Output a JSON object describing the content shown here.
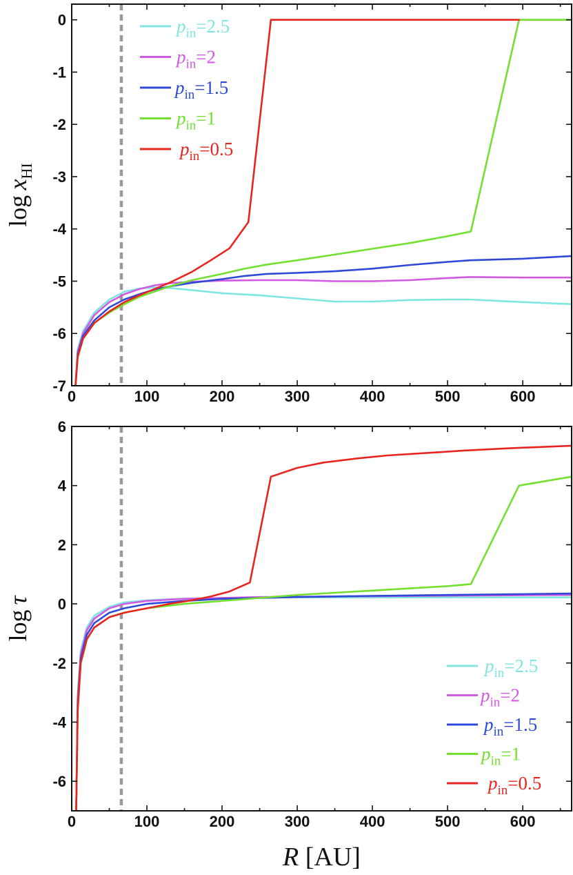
{
  "chart_data": [
    {
      "type": "line",
      "id": "top",
      "xlabel": "",
      "ylabel_main": "log",
      "ylabel_var": "x",
      "ylabel_sub": "HI",
      "xlim": [
        0,
        665
      ],
      "ylim": [
        -7,
        0.3
      ],
      "xticks": [
        0,
        100,
        200,
        300,
        400,
        500,
        600
      ],
      "xtick_labels": [
        "0",
        "100",
        "200",
        "300",
        "400",
        "500",
        "600"
      ],
      "yticks": [
        0,
        -1,
        -2,
        -3,
        -4,
        -5,
        -6,
        -7
      ],
      "ytick_labels": [
        "0",
        "-1",
        "-2",
        "-3",
        "-4",
        "-5",
        "-6",
        "-7"
      ],
      "vline_x": 66,
      "legend_position": "top-left",
      "series": [
        {
          "name": "p_in=2.5",
          "label_var": "p",
          "label_sub": "in",
          "label_val": "=2.5",
          "color": "#7ee6df",
          "x": [
            5,
            8,
            15,
            30,
            50,
            70,
            90,
            110,
            130,
            160,
            200,
            250,
            300,
            350,
            400,
            450,
            500,
            530,
            600,
            665
          ],
          "y": [
            -7.0,
            -6.3,
            -5.95,
            -5.6,
            -5.35,
            -5.2,
            -5.14,
            -5.12,
            -5.13,
            -5.17,
            -5.23,
            -5.27,
            -5.33,
            -5.39,
            -5.39,
            -5.36,
            -5.35,
            -5.35,
            -5.4,
            -5.44
          ]
        },
        {
          "name": "p_in=2",
          "label_var": "p",
          "label_sub": "in",
          "label_val": "=2",
          "color": "#d05ae0",
          "x": [
            5,
            8,
            15,
            30,
            50,
            70,
            90,
            110,
            130,
            160,
            200,
            250,
            300,
            350,
            400,
            450,
            500,
            530,
            600,
            665
          ],
          "y": [
            -7.0,
            -6.35,
            -6.0,
            -5.65,
            -5.4,
            -5.25,
            -5.15,
            -5.08,
            -5.04,
            -5.01,
            -4.99,
            -4.98,
            -4.98,
            -5.0,
            -5.0,
            -4.98,
            -4.94,
            -4.92,
            -4.93,
            -4.93
          ]
        },
        {
          "name": "p_in=1.5",
          "label_var": "p",
          "label_sub": "in",
          "label_val": "=1.5",
          "color": "#2e48d8",
          "x": [
            5,
            8,
            15,
            30,
            50,
            70,
            90,
            110,
            130,
            160,
            200,
            230,
            260,
            300,
            350,
            400,
            450,
            500,
            530,
            600,
            665
          ],
          "y": [
            -7.0,
            -6.4,
            -6.05,
            -5.75,
            -5.5,
            -5.35,
            -5.25,
            -5.16,
            -5.1,
            -5.03,
            -4.96,
            -4.9,
            -4.86,
            -4.84,
            -4.81,
            -4.76,
            -4.69,
            -4.63,
            -4.6,
            -4.57,
            -4.52
          ]
        },
        {
          "name": "p_in=1",
          "label_var": "p",
          "label_sub": "in",
          "label_val": "=1",
          "color": "#73e030",
          "x": [
            5,
            8,
            15,
            30,
            50,
            70,
            90,
            110,
            130,
            160,
            200,
            230,
            260,
            300,
            350,
            400,
            450,
            500,
            531,
            595,
            665
          ],
          "y": [
            -7.0,
            -6.45,
            -6.1,
            -5.8,
            -5.6,
            -5.44,
            -5.3,
            -5.2,
            -5.1,
            -4.98,
            -4.86,
            -4.76,
            -4.68,
            -4.6,
            -4.49,
            -4.38,
            -4.27,
            -4.14,
            -4.05,
            0,
            0
          ]
        },
        {
          "name": "p_in=0.5",
          "label_var": "p",
          "label_sub": "in",
          "label_val": "=0.5",
          "color": "#e8241e",
          "x": [
            5,
            8,
            15,
            30,
            50,
            70,
            90,
            110,
            130,
            160,
            185,
            210,
            235,
            265,
            300,
            400,
            500,
            595
          ],
          "y": [
            -7.0,
            -6.45,
            -6.1,
            -5.8,
            -5.58,
            -5.4,
            -5.27,
            -5.15,
            -5.03,
            -4.82,
            -4.6,
            -4.37,
            -3.87,
            0,
            0,
            0,
            0,
            0
          ]
        }
      ]
    },
    {
      "type": "line",
      "id": "bottom",
      "xlabel_var": "R",
      "xlabel_rest": "[AU]",
      "ylabel_main": "log",
      "ylabel_var": "τ",
      "xlim": [
        0,
        665
      ],
      "ylim": [
        -7,
        6
      ],
      "xticks": [
        0,
        100,
        200,
        300,
        400,
        500,
        600
      ],
      "xtick_labels": [
        "0",
        "100",
        "200",
        "300",
        "400",
        "500",
        "600"
      ],
      "yticks": [
        6,
        4,
        2,
        0,
        -2,
        -4,
        -6
      ],
      "ytick_labels": [
        "6",
        "4",
        "2",
        "0",
        "-2",
        "-4",
        "-6"
      ],
      "vline_x": 66,
      "legend_position": "bottom-right",
      "series": [
        {
          "name": "p_in=2.5",
          "label_var": "p",
          "label_sub": "in",
          "label_val": "=2.5",
          "color": "#7ee6df",
          "x": [
            6,
            8,
            12,
            20,
            30,
            50,
            70,
            100,
            150,
            250,
            400,
            665
          ],
          "y": [
            -7.0,
            -3.0,
            -1.6,
            -0.8,
            -0.4,
            -0.1,
            0.05,
            0.12,
            0.18,
            0.22,
            0.22,
            0.22
          ]
        },
        {
          "name": "p_in=2",
          "label_var": "p",
          "label_sub": "in",
          "label_val": "=2",
          "color": "#d05ae0",
          "x": [
            6,
            8,
            12,
            20,
            30,
            50,
            70,
            100,
            150,
            250,
            400,
            665
          ],
          "y": [
            -7.0,
            -3.2,
            -1.7,
            -0.9,
            -0.5,
            -0.15,
            0.0,
            0.1,
            0.17,
            0.23,
            0.26,
            0.3
          ]
        },
        {
          "name": "p_in=1.5",
          "label_var": "p",
          "label_sub": "in",
          "label_val": "=1.5",
          "color": "#2e48d8",
          "x": [
            6,
            8,
            12,
            20,
            30,
            50,
            70,
            100,
            150,
            200,
            300,
            400,
            500,
            665
          ],
          "y": [
            -7.0,
            -3.4,
            -1.85,
            -1.05,
            -0.65,
            -0.3,
            -0.15,
            0.0,
            0.1,
            0.17,
            0.23,
            0.27,
            0.3,
            0.35
          ]
        },
        {
          "name": "p_in=1",
          "label_var": "p",
          "label_sub": "in",
          "label_val": "=1",
          "color": "#73e030",
          "x": [
            6,
            8,
            12,
            20,
            30,
            50,
            70,
            100,
            150,
            200,
            250,
            300,
            400,
            500,
            531,
            595,
            665
          ],
          "y": [
            -7.0,
            -3.6,
            -2.0,
            -1.2,
            -0.8,
            -0.45,
            -0.3,
            -0.15,
            0.0,
            0.1,
            0.2,
            0.3,
            0.45,
            0.6,
            0.67,
            4.0,
            4.3
          ]
        },
        {
          "name": "p_in=0.5",
          "label_var": "p",
          "label_sub": "in",
          "label_val": "=0.5",
          "color": "#e8241e",
          "x": [
            6,
            8,
            12,
            20,
            30,
            50,
            70,
            100,
            130,
            160,
            185,
            210,
            237,
            265,
            300,
            335,
            380,
            420,
            470,
            520,
            580,
            665
          ],
          "y": [
            -7.0,
            -3.6,
            -2.0,
            -1.2,
            -0.8,
            -0.45,
            -0.3,
            -0.15,
            0.0,
            0.12,
            0.25,
            0.42,
            0.72,
            4.3,
            4.6,
            4.78,
            4.92,
            5.02,
            5.1,
            5.18,
            5.26,
            5.35
          ]
        }
      ]
    }
  ]
}
